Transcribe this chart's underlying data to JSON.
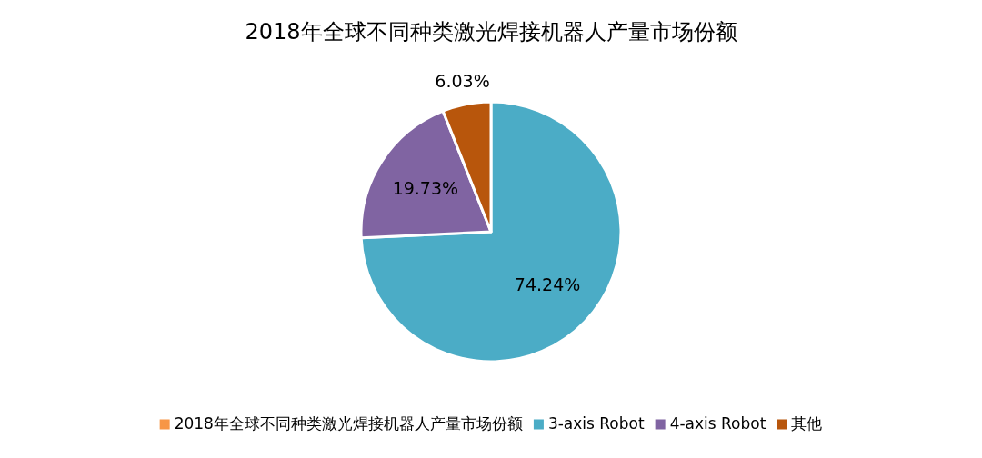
{
  "chart_data": {
    "type": "pie",
    "title": "2018年全球不同种类激光焊接机器人产量市场份额",
    "categories": [
      "2018年全球不同种类激光焊接机器人产量市场份额",
      "3-axis Robot",
      "4-axis Robot",
      "其他"
    ],
    "values": [
      null,
      74.24,
      19.73,
      6.03
    ],
    "colors": [
      "#f79646",
      "#4bacc6",
      "#8064a2",
      "#b8560c"
    ],
    "value_labels": [
      null,
      "74.24%",
      "19.73%",
      "6.03%"
    ],
    "legend": "bottom"
  }
}
